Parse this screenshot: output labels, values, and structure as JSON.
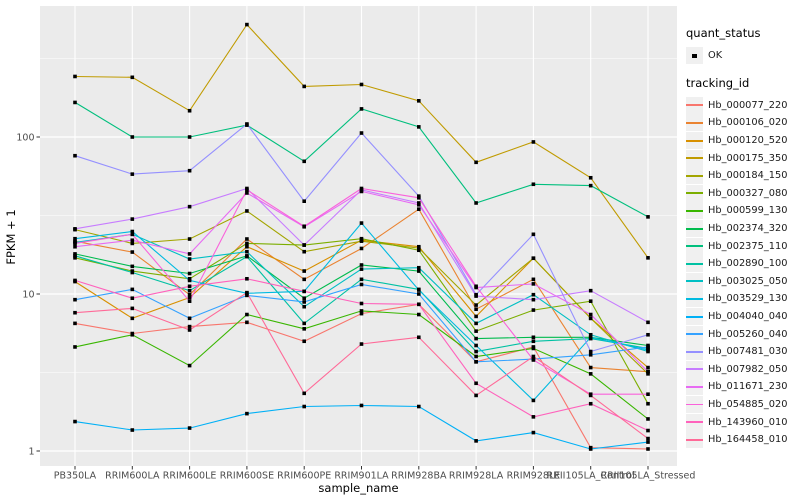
{
  "chart_data": {
    "type": "line",
    "title": "",
    "xlabel": "sample_name",
    "ylabel": "FPKM + 1",
    "y_scale": "log10",
    "ylim": [
      1,
      700
    ],
    "y_ticks": [
      1,
      10,
      100
    ],
    "y_tick_labels": [
      "1",
      "10",
      "100"
    ],
    "y_minor_breaks": [
      3.162,
      31.62,
      316.2
    ],
    "grid": true,
    "legend_position": "right",
    "point_shape": "black-square",
    "panel_bg": "#EBEBEB",
    "grid_color": "#FFFFFF",
    "tick_label_color": "#4D4D4D",
    "categories": [
      "PB350LA",
      "RRIM600LA",
      "RRIM600LE",
      "RRIM600SE",
      "RRIM600PE",
      "RRIM901LA",
      "RRIM928BA",
      "RRIM928LA",
      "RRIM928LE",
      "RRII105LA_Control",
      "RRII105LA_Stressed"
    ],
    "series": [
      {
        "name": "Hb_000077_220",
        "color": "#F8766D",
        "values": [
          6.5,
          5.6,
          6.2,
          6.6,
          5.0,
          7.5,
          8.6,
          3.7,
          4.6,
          1.05,
          1.03
        ]
      },
      {
        "name": "Hb_000106_020",
        "color": "#EA8331",
        "values": [
          21.7,
          18.5,
          9.9,
          22.4,
          12.4,
          19.5,
          34.7,
          8.0,
          12.4,
          3.4,
          3.2
        ]
      },
      {
        "name": "Hb_000120_520",
        "color": "#D89000",
        "values": [
          12.0,
          7.0,
          9.5,
          20.0,
          14.0,
          22.0,
          20.0,
          7.2,
          16.9,
          7.0,
          3.4
        ]
      },
      {
        "name": "Hb_000175_350",
        "color": "#C09B00",
        "values": [
          243,
          240,
          147,
          520,
          210,
          216,
          170,
          69,
          93,
          55,
          17
        ]
      },
      {
        "name": "Hb_000184_150",
        "color": "#A3A500",
        "values": [
          25.7,
          21.0,
          22.4,
          33.8,
          18.6,
          21.7,
          19.6,
          8.5,
          16.9,
          7.0,
          3.1
        ]
      },
      {
        "name": "Hb_000327_080",
        "color": "#7CAE00",
        "values": [
          17.0,
          14.0,
          12.5,
          21.0,
          20.5,
          22.5,
          19.0,
          5.8,
          7.9,
          9.0,
          2.0
        ]
      },
      {
        "name": "Hb_000599_130",
        "color": "#39B600",
        "values": [
          4.6,
          5.5,
          3.5,
          7.4,
          6.0,
          7.8,
          7.4,
          4.0,
          4.5,
          3.1,
          1.6
        ]
      },
      {
        "name": "Hb_002374_320",
        "color": "#00BB4E",
        "values": [
          18.0,
          15.0,
          13.5,
          17.5,
          9.4,
          15.3,
          14.0,
          5.2,
          5.3,
          5.3,
          4.7
        ]
      },
      {
        "name": "Hb_002375_110",
        "color": "#00BF7D",
        "values": [
          166,
          100,
          100,
          119,
          70,
          151,
          116,
          38,
          50,
          49,
          31
        ]
      },
      {
        "name": "Hb_002890_100",
        "color": "#00C1A3",
        "values": [
          17.5,
          13.7,
          10.5,
          17.3,
          6.5,
          12.4,
          10.7,
          4.3,
          5.0,
          5.2,
          4.5
        ]
      },
      {
        "name": "Hb_003025_050",
        "color": "#00BFC4",
        "values": [
          21.3,
          24.0,
          16.7,
          18.6,
          8.3,
          14.4,
          14.7,
          6.5,
          9.9,
          5.5,
          4.3
        ]
      },
      {
        "name": "Hb_003529_130",
        "color": "#00BAE0",
        "values": [
          22.5,
          25.0,
          12.2,
          10.1,
          10.4,
          28.3,
          10.6,
          4.7,
          2.1,
          5.3,
          4.4
        ]
      },
      {
        "name": "Hb_004040_040",
        "color": "#00B0F6",
        "values": [
          1.54,
          1.36,
          1.4,
          1.73,
          1.92,
          1.95,
          1.92,
          1.16,
          1.31,
          1.03,
          1.14
        ]
      },
      {
        "name": "Hb_005260_040",
        "color": "#35A2FF",
        "values": [
          9.2,
          10.7,
          7.0,
          9.8,
          8.9,
          11.5,
          10.0,
          3.7,
          3.85,
          4.1,
          4.6
        ]
      },
      {
        "name": "Hb_007481_030",
        "color": "#9590FF",
        "values": [
          76,
          58,
          61,
          121,
          39,
          106,
          42,
          9.9,
          24,
          4.3,
          5.5
        ]
      },
      {
        "name": "Hb_007982_050",
        "color": "#C77CFF",
        "values": [
          26,
          30,
          36,
          47,
          20.5,
          46,
          38,
          9.7,
          9.2,
          10.5,
          6.6
        ]
      },
      {
        "name": "Hb_011671_230",
        "color": "#E76BF3",
        "values": [
          20,
          22,
          18,
          44,
          26.8,
          45,
          37,
          11,
          11.6,
          7.4,
          3.2
        ]
      },
      {
        "name": "Hb_054885_020",
        "color": "#FA62DB",
        "values": [
          21,
          24,
          9.0,
          46,
          27,
          47,
          41,
          11.2,
          3.8,
          2.3,
          2.3
        ]
      },
      {
        "name": "Hb_143960_010",
        "color": "#FF62BC",
        "values": [
          12.2,
          9.4,
          11.2,
          12.5,
          10.4,
          8.7,
          8.6,
          2.7,
          1.65,
          2.0,
          1.35
        ]
      },
      {
        "name": "Hb_164458_010",
        "color": "#FF6A98",
        "values": [
          7.6,
          8.1,
          5.9,
          10.2,
          2.33,
          4.8,
          5.3,
          2.26,
          4.0,
          2.26,
          1.2
        ]
      }
    ]
  },
  "legend": {
    "quant_status_title": "quant_status",
    "quant_status_items": [
      {
        "label": "OK",
        "symbol": "black-square"
      }
    ],
    "tracking_title": "tracking_id"
  }
}
